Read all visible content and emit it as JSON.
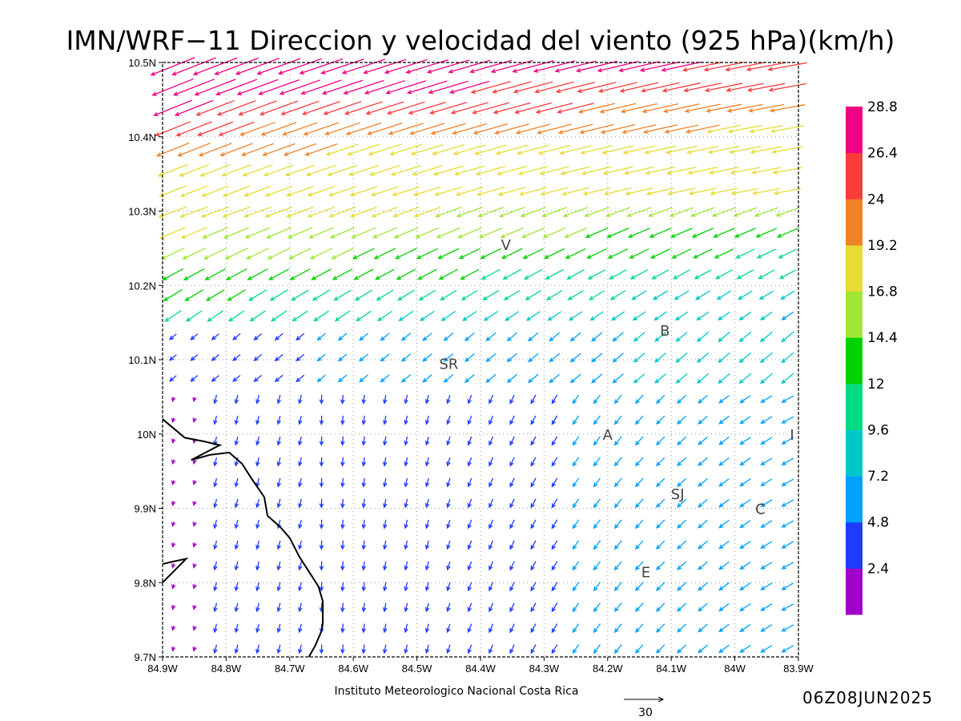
{
  "title": "IMN/WRF−11 Direccion y velocidad del viento (925 hPa)(km/h)",
  "footer": {
    "credit": "Instituto Meteorologico Nacional Costa Rica",
    "reference_vector_value": "30",
    "timestamp": "06Z08JUN2025"
  },
  "chart_data": {
    "type": "vector_field",
    "title": "IMN/WRF−11 Direccion y velocidad del viento (925 hPa)(km/h)",
    "x_axis": {
      "range": [
        -84.9,
        -83.9
      ],
      "ticks": [
        {
          "value": -84.9,
          "label": "84.9W"
        },
        {
          "value": -84.8,
          "label": "84.8W"
        },
        {
          "value": -84.7,
          "label": "84.7W"
        },
        {
          "value": -84.6,
          "label": "84.6W"
        },
        {
          "value": -84.5,
          "label": "84.5W"
        },
        {
          "value": -84.4,
          "label": "84.4W"
        },
        {
          "value": -84.3,
          "label": "84.3W"
        },
        {
          "value": -84.2,
          "label": "84.2W"
        },
        {
          "value": -84.1,
          "label": "84.1W"
        },
        {
          "value": -84.0,
          "label": "84W"
        },
        {
          "value": -83.9,
          "label": "83.9W"
        }
      ]
    },
    "y_axis": {
      "range": [
        9.7,
        10.5
      ],
      "ticks": [
        {
          "value": 9.7,
          "label": "9.7N"
        },
        {
          "value": 9.8,
          "label": "9.8N"
        },
        {
          "value": 9.9,
          "label": "9.9N"
        },
        {
          "value": 10.0,
          "label": "10N"
        },
        {
          "value": 10.1,
          "label": "10.1N"
        },
        {
          "value": 10.2,
          "label": "10.2N"
        },
        {
          "value": 10.3,
          "label": "10.3N"
        },
        {
          "value": 10.4,
          "label": "10.4N"
        },
        {
          "value": 10.5,
          "label": "10.5N"
        }
      ]
    },
    "grid": "dotted",
    "colorbar": {
      "orientation": "vertical",
      "placement": "right",
      "bounds": [
        2.4,
        4.8,
        7.2,
        9.6,
        12,
        14.4,
        16.8,
        19.2,
        24,
        26.4,
        28.8
      ],
      "labels": [
        "2.4",
        "4.8",
        "7.2",
        "9.6",
        "12",
        "14.4",
        "16.8",
        "19.2",
        "24",
        "26.4",
        "28.8"
      ],
      "colors": [
        "#a000c8",
        "#1e3cff",
        "#00a0ff",
        "#00c8c8",
        "#00dc82",
        "#00d200",
        "#a0e632",
        "#e6dc32",
        "#f08228",
        "#fa3c3c",
        "#f00082"
      ]
    },
    "reference_vector": {
      "speed": 30,
      "label": "30"
    },
    "cities": [
      {
        "label": "V",
        "lon": -84.36,
        "lat": 10.255
      },
      {
        "label": "B",
        "lon": -84.11,
        "lat": 10.14
      },
      {
        "label": "SR",
        "lon": -84.45,
        "lat": 10.095
      },
      {
        "label": "A",
        "lon": -84.2,
        "lat": 10.0
      },
      {
        "label": "I",
        "lon": -83.91,
        "lat": 10.0
      },
      {
        "label": "SJ",
        "lon": -84.09,
        "lat": 9.92
      },
      {
        "label": "C",
        "lon": -83.96,
        "lat": 9.9
      },
      {
        "label": "E",
        "lon": -84.14,
        "lat": 9.815
      }
    ],
    "coastline": [
      [
        -84.9,
        10.02
      ],
      [
        -84.865,
        9.995
      ],
      [
        -84.835,
        9.99
      ],
      [
        -84.81,
        9.985
      ],
      [
        -84.855,
        9.965
      ],
      [
        -84.825,
        9.972
      ],
      [
        -84.795,
        9.975
      ],
      [
        -84.775,
        9.96
      ],
      [
        -84.76,
        9.94
      ],
      [
        -84.74,
        9.915
      ],
      [
        -84.735,
        9.89
      ],
      [
        -84.715,
        9.875
      ],
      [
        -84.7,
        9.86
      ],
      [
        -84.685,
        9.835
      ],
      [
        -84.67,
        9.815
      ],
      [
        -84.655,
        9.795
      ],
      [
        -84.648,
        9.775
      ],
      [
        -84.648,
        9.745
      ],
      [
        -84.65,
        9.735
      ],
      [
        -84.66,
        9.715
      ],
      [
        -84.67,
        9.7
      ]
    ],
    "coastline_secondary": [
      [
        -84.9,
        9.825
      ],
      [
        -84.885,
        9.828
      ],
      [
        -84.863,
        9.832
      ],
      [
        -84.9,
        9.8
      ]
    ],
    "grid_columns": 30,
    "grid_rows_lat": [
      10.495,
      10.467,
      10.439,
      10.411,
      10.383,
      10.355,
      10.327,
      10.299,
      10.271,
      10.243,
      10.215,
      10.187,
      10.159,
      10.131,
      10.103,
      10.075,
      10.047,
      10.019,
      9.991,
      9.963,
      9.935,
      9.907,
      9.879,
      9.851,
      9.823,
      9.795,
      9.767,
      9.739,
      9.711
    ],
    "wind_regimes_by_row": [
      {
        "lat_from": 10.5,
        "lat_to": 10.3,
        "direction": "toward west-southwest",
        "speed_kmh": [
          19,
          28
        ]
      },
      {
        "lat_from": 10.3,
        "lat_to": 10.15,
        "direction": "toward southwest",
        "speed_kmh": [
          10,
          20
        ]
      },
      {
        "lat_from": 10.15,
        "lat_to": 10.05,
        "direction": "toward southwest",
        "speed_kmh": [
          5,
          12
        ]
      },
      {
        "lat_from": 10.05,
        "lat_to": 9.7,
        "direction": "toward south (west part), southwest (east part)",
        "speed_kmh": [
          2,
          12
        ]
      }
    ]
  }
}
